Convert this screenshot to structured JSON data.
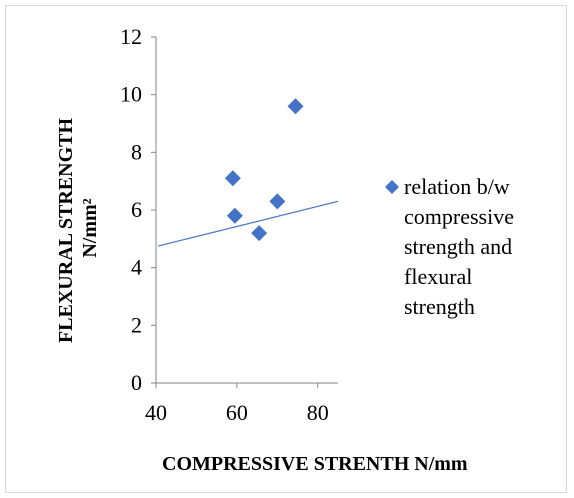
{
  "chart_data": {
    "type": "scatter",
    "title": "",
    "xlabel": "COMPRESSIVE STRENTH N/mm",
    "ylabel_lines": [
      "FLEXURAL STRENGTH",
      "N/mm²"
    ],
    "xlim": [
      40,
      85
    ],
    "ylim": [
      0,
      12
    ],
    "x_ticks": [
      40,
      60,
      80
    ],
    "y_ticks": [
      0,
      2,
      4,
      6,
      8,
      10,
      12
    ],
    "grid": false,
    "legend_position": "right",
    "series": [
      {
        "name": "relation b/w compressive strength and flexural strength",
        "legend_lines": [
          "relation b/w",
          "compressive",
          "strength and",
          "flexural",
          "strength"
        ],
        "marker": "diamond",
        "color": "#4472C4",
        "points": [
          {
            "x": 59,
            "y": 7.1
          },
          {
            "x": 59.5,
            "y": 5.8
          },
          {
            "x": 65.5,
            "y": 5.2
          },
          {
            "x": 70,
            "y": 6.3
          },
          {
            "x": 74.5,
            "y": 9.6
          }
        ]
      }
    ],
    "trendline": {
      "type": "linear",
      "color": "#4472C4",
      "from": {
        "x": 40.5,
        "y": 4.75
      },
      "to": {
        "x": 85,
        "y": 6.3
      }
    }
  }
}
